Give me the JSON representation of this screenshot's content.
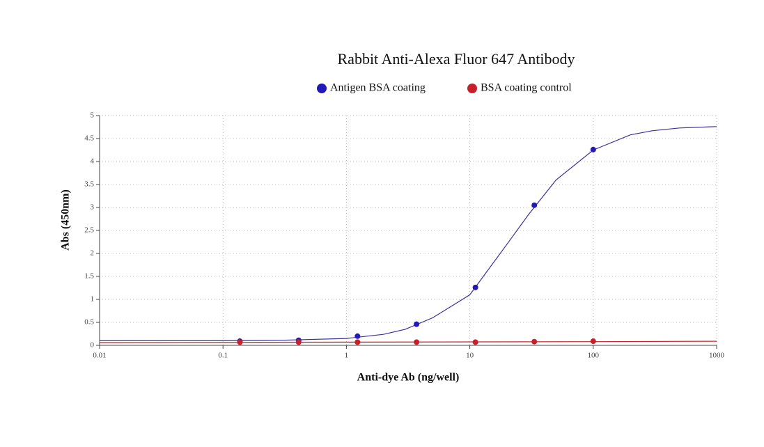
{
  "chart_data": {
    "type": "scatter",
    "title": "Rabbit Anti-Alexa Fluor 647 Antibody",
    "x_label": "Anti-dye Ab (ng/well)",
    "y_label": "Abs (450nm)",
    "x_scale": "log",
    "grid": true,
    "xlim": [
      0.01,
      1000
    ],
    "xticks": [
      0.01,
      0.1,
      1,
      10,
      100,
      1000
    ],
    "ylim": [
      0,
      5
    ],
    "yticks": [
      0,
      0.5,
      1,
      1.5,
      2,
      2.5,
      3,
      3.5,
      4,
      4.5,
      5
    ],
    "series": [
      {
        "name": "Antigen BSA coating",
        "color": "#2318b8",
        "line_color": "#3b2f9c",
        "x": [
          0.137,
          0.41,
          1.23,
          3.7,
          11.1,
          33.3,
          100
        ],
        "values": [
          0.09,
          0.11,
          0.2,
          0.46,
          1.26,
          3.05,
          4.26
        ],
        "fit_x": [
          0.01,
          0.1,
          0.3,
          1,
          2,
          3,
          5,
          10,
          20,
          30,
          50,
          100,
          200,
          300,
          500,
          1000
        ],
        "fit_values": [
          0.1,
          0.1,
          0.11,
          0.15,
          0.24,
          0.35,
          0.6,
          1.1,
          2.2,
          2.85,
          3.6,
          4.25,
          4.58,
          4.67,
          4.73,
          4.76
        ]
      },
      {
        "name": "BSA coating control",
        "color": "#c8202a",
        "line_color": "#c8202a",
        "x": [
          0.137,
          0.41,
          1.23,
          3.7,
          11.1,
          33.3,
          100
        ],
        "values": [
          0.07,
          0.07,
          0.07,
          0.07,
          0.07,
          0.08,
          0.09
        ],
        "fit_x": [
          0.01,
          1,
          100,
          1000
        ],
        "fit_values": [
          0.06,
          0.07,
          0.08,
          0.09
        ]
      }
    ]
  }
}
